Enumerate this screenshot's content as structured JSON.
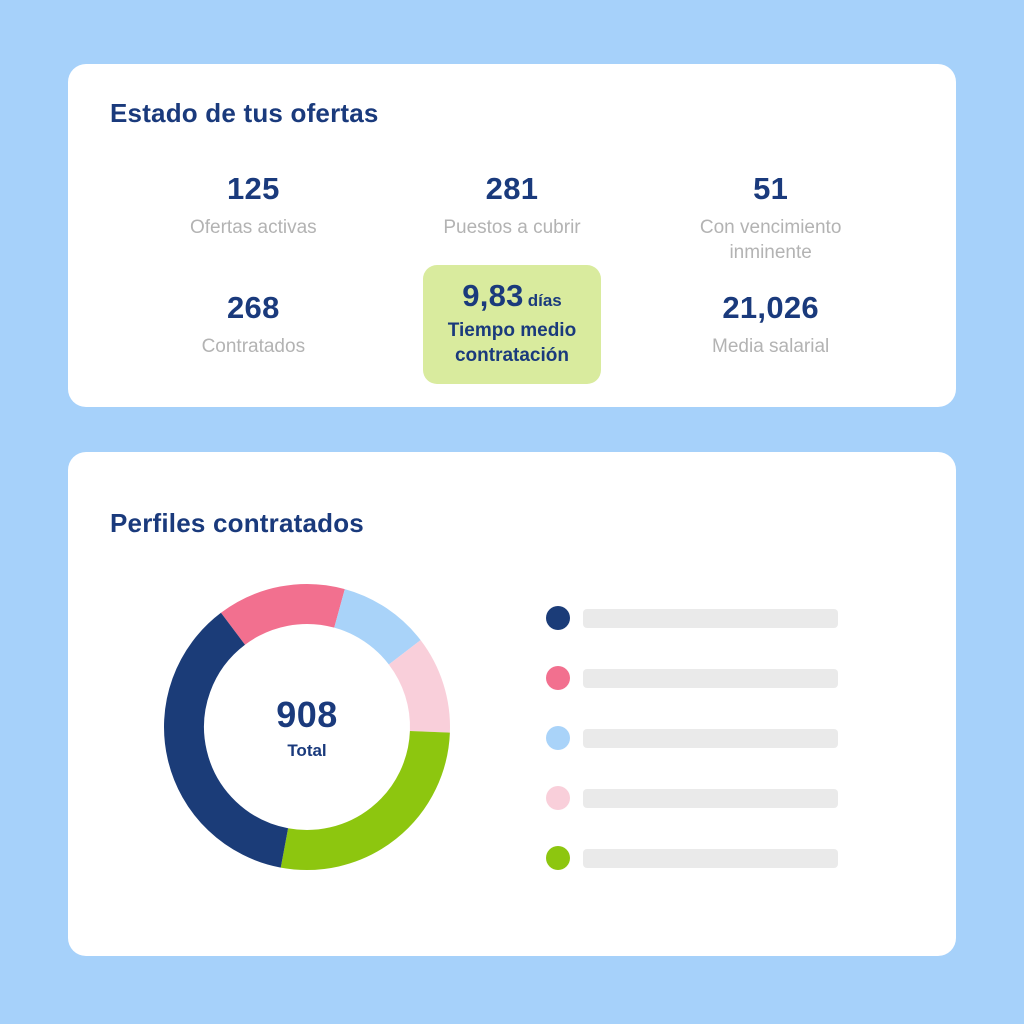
{
  "colors": {
    "page_background": "#A6D1FA",
    "card_background": "#FFFFFF",
    "navy_text": "#1A3A7C",
    "gray_label": "#B3B3B3",
    "highlight_green": "#D9EB9E",
    "legend_placeholder_gray": "#EAEAEA"
  },
  "status_card": {
    "title": "Estado de tus ofertas",
    "stats_row1": [
      {
        "value": "125",
        "label": "Ofertas activas"
      },
      {
        "value": "281",
        "label": "Puestos a cubrir"
      },
      {
        "value": "51",
        "label": "Con vencimiento inminente"
      }
    ],
    "stats_row2": [
      {
        "value": "268",
        "label": "Contratados"
      },
      {
        "value": "9,83",
        "unit": "días",
        "label": "Tiempo medio contratación",
        "highlighted": true,
        "highlight_color": "#D9EB9E"
      },
      {
        "value": "21,026",
        "label": "Media salarial"
      }
    ]
  },
  "profiles_card": {
    "title": "Perfiles contratados"
  },
  "chart_data": {
    "type": "donut",
    "title": "Perfiles contratados",
    "center_value": "908",
    "center_label": "Total",
    "total": 908,
    "start_angle_deg": -37,
    "values_estimated_from_angles": true,
    "legend_labels_visible": false,
    "segments": [
      {
        "name": "pink",
        "color": "#F2708F",
        "value": 132
      },
      {
        "name": "light-blue",
        "color": "#A9D3F9",
        "value": 94
      },
      {
        "name": "pale-pink",
        "color": "#F9CFDA",
        "value": 100
      },
      {
        "name": "green",
        "color": "#8DC60F",
        "value": 248
      },
      {
        "name": "navy",
        "color": "#1B3C78",
        "value": 334
      }
    ],
    "legend": [
      {
        "name": "navy",
        "color": "#1B3C78",
        "label": ""
      },
      {
        "name": "pink",
        "color": "#F2708F",
        "label": ""
      },
      {
        "name": "light-blue",
        "color": "#A9D3F9",
        "label": ""
      },
      {
        "name": "pale-pink",
        "color": "#F9CFDA",
        "label": ""
      },
      {
        "name": "green",
        "color": "#8DC60F",
        "label": ""
      }
    ],
    "legend_position": "right"
  }
}
